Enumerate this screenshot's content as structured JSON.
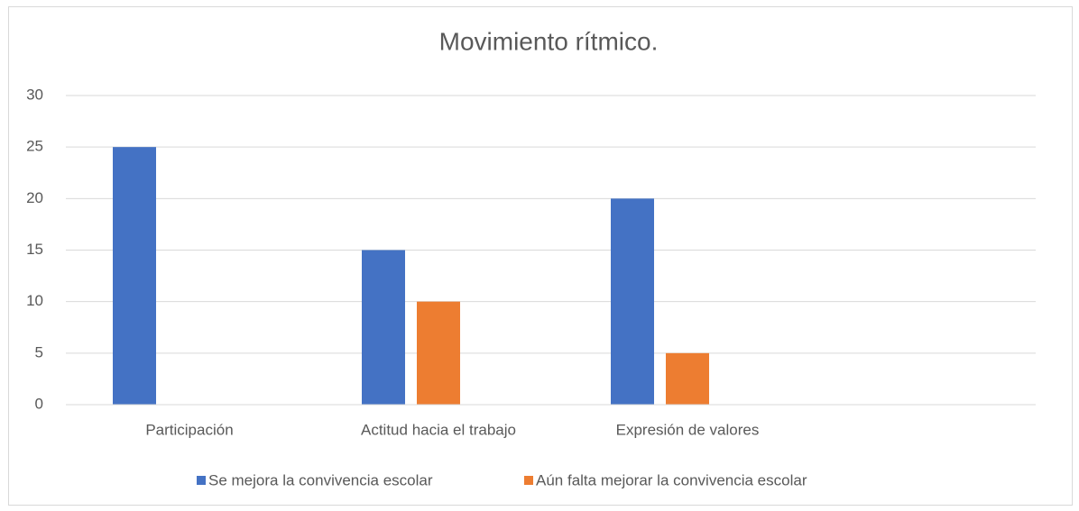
{
  "chart_data": {
    "type": "bar",
    "title": "Movimiento rítmico.",
    "categories": [
      "Participación",
      "Actitud hacia el trabajo",
      "Expresión de valores",
      null
    ],
    "series": [
      {
        "name": "Se mejora la convivencia escolar",
        "color": "#4472c4",
        "values": [
          25,
          15,
          20,
          null
        ]
      },
      {
        "name": "Aún falta mejorar la convivencia escolar",
        "color": "#ed7d31",
        "values": [
          0,
          10,
          5,
          null
        ]
      }
    ],
    "ylim": [
      0,
      30
    ],
    "yticks": [
      0,
      5,
      10,
      15,
      20,
      25,
      30
    ],
    "grid": true,
    "legend": "bottom"
  }
}
